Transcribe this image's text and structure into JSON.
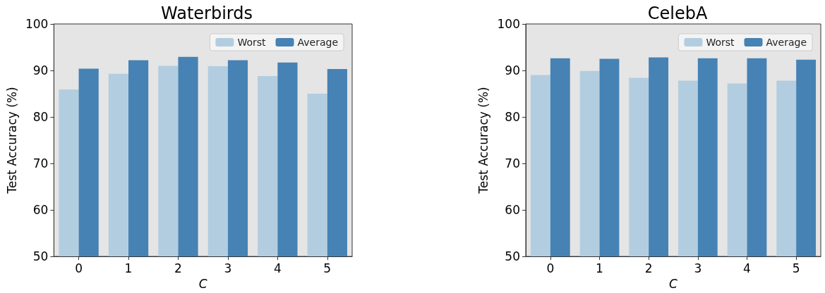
{
  "chart_data": [
    {
      "type": "bar",
      "title": "Waterbirds",
      "xlabel": "C",
      "ylabel": "Test Accuracy (%)",
      "categories": [
        "0",
        "1",
        "2",
        "3",
        "4",
        "5"
      ],
      "series": [
        {
          "name": "Worst",
          "color": "#b3cde0",
          "values": [
            85.9,
            89.3,
            91.0,
            90.9,
            88.8,
            85.0
          ]
        },
        {
          "name": "Average",
          "color": "#4682b4",
          "values": [
            90.4,
            92.2,
            92.9,
            92.2,
            91.7,
            90.3
          ]
        }
      ],
      "ylim": [
        50,
        100
      ],
      "yticks": [
        50,
        60,
        70,
        80,
        90,
        100
      ],
      "grid": false,
      "legend": "top right"
    },
    {
      "type": "bar",
      "title": "CelebA",
      "xlabel": "C",
      "ylabel": "Test Accuracy (%)",
      "categories": [
        "0",
        "1",
        "2",
        "3",
        "4",
        "5"
      ],
      "series": [
        {
          "name": "Worst",
          "color": "#b3cde0",
          "values": [
            89.0,
            89.9,
            88.4,
            87.8,
            87.2,
            87.8
          ]
        },
        {
          "name": "Average",
          "color": "#4682b4",
          "values": [
            92.6,
            92.5,
            92.8,
            92.6,
            92.6,
            92.3
          ]
        }
      ],
      "ylim": [
        50,
        100
      ],
      "yticks": [
        50,
        60,
        70,
        80,
        90,
        100
      ],
      "grid": false,
      "legend": "top right"
    }
  ]
}
